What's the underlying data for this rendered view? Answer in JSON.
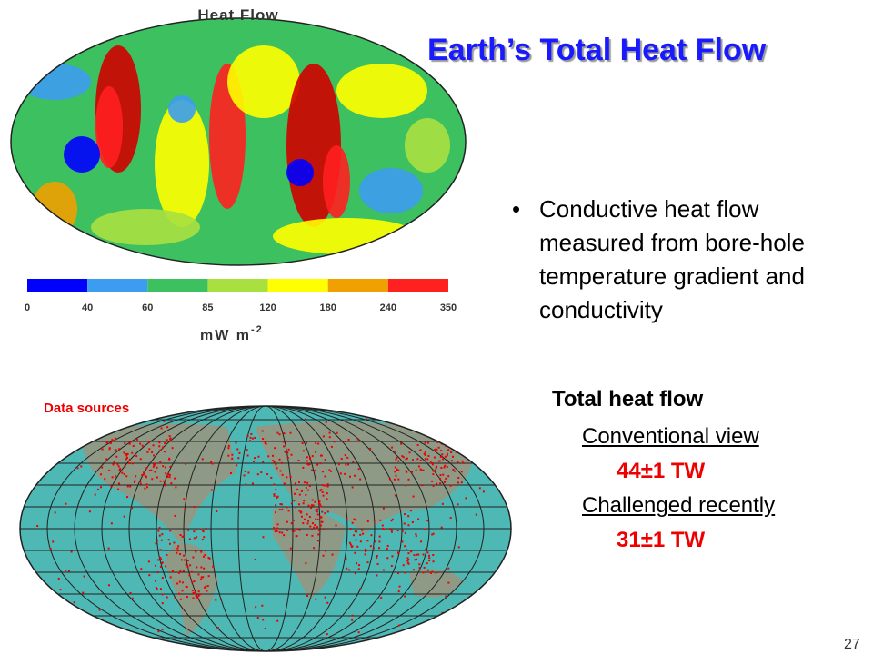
{
  "header": {
    "title": "Earth’s Total Heat Flow"
  },
  "heat_map": {
    "title": "Heat Flow",
    "colorbar_labels": [
      0,
      40,
      60,
      85,
      120,
      180,
      240,
      350
    ],
    "unit": "mW m",
    "unit_exponent": "-2"
  },
  "bullets": [
    "Conductive heat flow measured from bore-hole temperature gradient and conductivity"
  ],
  "data_map": {
    "label": "Data sources"
  },
  "summary": {
    "heading": "Total heat flow",
    "items": [
      {
        "label": "Conventional view",
        "value": "44±1 TW"
      },
      {
        "label": "Challenged recently",
        "value": "31±1 TW"
      }
    ]
  },
  "page_number": 27
}
